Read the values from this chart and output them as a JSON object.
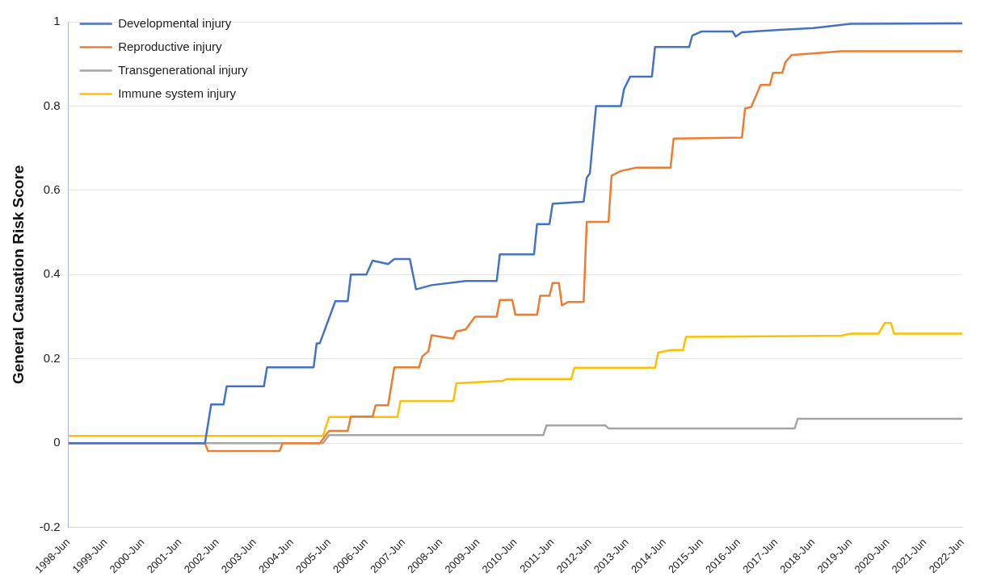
{
  "chart_data": {
    "type": "line",
    "ylabel": "General Causation Risk Score",
    "xlim": [
      "1998-06",
      "2022-06"
    ],
    "ylim": [
      -0.2,
      1
    ],
    "xticks": [
      {
        "value": "1998-06",
        "label": "1998-Jun"
      },
      {
        "value": "1999-06",
        "label": "1999-Jun"
      },
      {
        "value": "2000-06",
        "label": "2000-Jun"
      },
      {
        "value": "2001-06",
        "label": "2001-Jun"
      },
      {
        "value": "2002-06",
        "label": "2002-Jun"
      },
      {
        "value": "2003-06",
        "label": "2003-Jun"
      },
      {
        "value": "2004-06",
        "label": "2004-Jun"
      },
      {
        "value": "2005-06",
        "label": "2005-Jun"
      },
      {
        "value": "2006-06",
        "label": "2006-Jun"
      },
      {
        "value": "2007-06",
        "label": "2007-Jun"
      },
      {
        "value": "2008-06",
        "label": "2008-Jun"
      },
      {
        "value": "2009-06",
        "label": "2009-Jun"
      },
      {
        "value": "2010-06",
        "label": "2010-Jun"
      },
      {
        "value": "2011-06",
        "label": "2011-Jun"
      },
      {
        "value": "2012-06",
        "label": "2012-Jun"
      },
      {
        "value": "2013-06",
        "label": "2013-Jun"
      },
      {
        "value": "2014-06",
        "label": "2014-Jun"
      },
      {
        "value": "2015-06",
        "label": "2015-Jun"
      },
      {
        "value": "2016-06",
        "label": "2016-Jun"
      },
      {
        "value": "2017-06",
        "label": "2017-Jun"
      },
      {
        "value": "2018-06",
        "label": "2018-Jun"
      },
      {
        "value": "2019-06",
        "label": "2019-Jun"
      },
      {
        "value": "2020-06",
        "label": "2020-Jun"
      },
      {
        "value": "2021-06",
        "label": "2021-Jun"
      },
      {
        "value": "2022-06",
        "label": "2022-Jun"
      }
    ],
    "yticks": [
      -0.2,
      0,
      0.2,
      0.4,
      0.6,
      0.8,
      1
    ],
    "grid": "y",
    "legend": "top left",
    "marker": "none",
    "line_style": "solid",
    "series": [
      {
        "name": "Developmental injury",
        "color": "#4472c4",
        "x": [
          "1998-06",
          "2002-02",
          "2002-04",
          "2002-08",
          "2002-09",
          "2003-09",
          "2003-10",
          "2005-01",
          "2005-02",
          "2005-03",
          "2005-08",
          "2005-12",
          "2006-01",
          "2006-06",
          "2006-08",
          "2007-01",
          "2007-03",
          "2007-08",
          "2007-10",
          "2008-03",
          "2009-02",
          "2009-12",
          "2010-01",
          "2010-12",
          "2011-01",
          "2011-05",
          "2011-06",
          "2012-04",
          "2012-05",
          "2012-06",
          "2012-08",
          "2013-04",
          "2013-05",
          "2013-07",
          "2014-02",
          "2014-03",
          "2015-02",
          "2015-03",
          "2015-06",
          "2016-04",
          "2016-05",
          "2016-07",
          "2017-05",
          "2018-06",
          "2019-06",
          "2022-06"
        ],
        "values": [
          0,
          0,
          0.092,
          0.092,
          0.135,
          0.135,
          0.18,
          0.18,
          0.237,
          0.237,
          0.337,
          0.337,
          0.4,
          0.4,
          0.433,
          0.425,
          0.437,
          0.437,
          0.365,
          0.375,
          0.385,
          0.385,
          0.448,
          0.448,
          0.52,
          0.52,
          0.568,
          0.573,
          0.63,
          0.64,
          0.8,
          0.8,
          0.84,
          0.87,
          0.87,
          0.94,
          0.94,
          0.967,
          0.977,
          0.977,
          0.965,
          0.975,
          0.98,
          0.985,
          0.995,
          0.996
        ]
      },
      {
        "name": "Reproductive injury",
        "color": "#ed7d31",
        "x": [
          "1998-06",
          "2002-02",
          "2002-03",
          "2004-02",
          "2004-03",
          "2005-03",
          "2005-06",
          "2005-12",
          "2006-01",
          "2006-08",
          "2006-09",
          "2007-01",
          "2007-03",
          "2007-11",
          "2007-12",
          "2008-02",
          "2008-03",
          "2008-10",
          "2008-11",
          "2009-02",
          "2009-05",
          "2009-12",
          "2010-01",
          "2010-05",
          "2010-06",
          "2011-01",
          "2011-02",
          "2011-05",
          "2011-06",
          "2011-08",
          "2011-09",
          "2011-11",
          "2012-04",
          "2012-05",
          "2012-12",
          "2013-01",
          "2013-04",
          "2013-09",
          "2014-08",
          "2014-09",
          "2016-07",
          "2016-08",
          "2016-10",
          "2017-01",
          "2017-04",
          "2017-05",
          "2017-08",
          "2017-09",
          "2017-11",
          "2019-03",
          "2022-06"
        ],
        "values": [
          0,
          0,
          -0.019,
          -0.019,
          0,
          0,
          0.029,
          0.029,
          0.063,
          0.063,
          0.09,
          0.09,
          0.18,
          0.18,
          0.206,
          0.218,
          0.256,
          0.248,
          0.265,
          0.27,
          0.3,
          0.3,
          0.34,
          0.34,
          0.305,
          0.305,
          0.35,
          0.35,
          0.38,
          0.38,
          0.327,
          0.335,
          0.335,
          0.525,
          0.525,
          0.635,
          0.646,
          0.654,
          0.654,
          0.723,
          0.725,
          0.794,
          0.798,
          0.85,
          0.85,
          0.879,
          0.879,
          0.904,
          0.921,
          0.93,
          0.93
        ]
      },
      {
        "name": "Transgenerational injury",
        "color": "#a5a5a5",
        "x": [
          "1998-06",
          "2005-04",
          "2005-06",
          "2011-03",
          "2011-04",
          "2012-11",
          "2012-12",
          "2017-12",
          "2018-01",
          "2022-06"
        ],
        "values": [
          0,
          0,
          0.019,
          0.019,
          0.042,
          0.042,
          0.035,
          0.035,
          0.058,
          0.058
        ]
      },
      {
        "name": "Immune system injury",
        "color": "#ffc000",
        "x": [
          "1998-06",
          "2005-04",
          "2005-06",
          "2007-04",
          "2007-05",
          "2008-10",
          "2008-11",
          "2010-02",
          "2010-03",
          "2011-12",
          "2012-01",
          "2014-03",
          "2014-04",
          "2014-08",
          "2014-12",
          "2015-01",
          "2019-03",
          "2019-06",
          "2020-03",
          "2020-05",
          "2020-07",
          "2020-08",
          "2022-06"
        ],
        "values": [
          0.017,
          0.017,
          0.062,
          0.062,
          0.1,
          0.1,
          0.142,
          0.148,
          0.152,
          0.152,
          0.179,
          0.179,
          0.215,
          0.221,
          0.221,
          0.252,
          0.255,
          0.26,
          0.26,
          0.285,
          0.285,
          0.26,
          0.26
        ]
      }
    ]
  }
}
